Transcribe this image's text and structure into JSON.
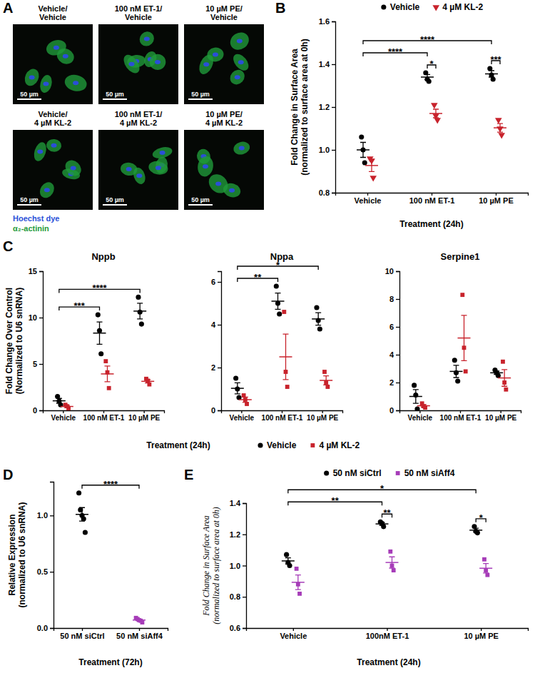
{
  "micrographs": {
    "panel": "A",
    "images": [
      {
        "title": [
          "Vehicle/",
          "Vehicle"
        ],
        "scale_bar": "50 µm"
      },
      {
        "title": [
          "100 nM ET-1/",
          "Vehicle"
        ],
        "scale_bar": "50 µm"
      },
      {
        "title": [
          "10 µM PE/",
          "Vehicle"
        ],
        "scale_bar": "50 µm"
      },
      {
        "title": [
          "Vehicle/",
          "4 µM KL-2"
        ],
        "scale_bar": "50 µm"
      },
      {
        "title": [
          "100 nM ET-1/",
          "4 µM KL-2"
        ],
        "scale_bar": "50 µm"
      },
      {
        "title": [
          "10 µM PE/",
          "4 µM KL-2"
        ],
        "scale_bar": "50 µm"
      }
    ],
    "stains": [
      {
        "name": "Hoechst dye",
        "color": "#2a4fd8"
      },
      {
        "name": "α₂-actinin",
        "color": "#1f9a3a"
      }
    ]
  },
  "chart_data": [
    {
      "panel": "B",
      "type": "scatter",
      "categories": [
        "Vehicle",
        "100 nM ET-1",
        "10 µM PE"
      ],
      "x_label": "Treatment (24h)",
      "y_label": [
        "Fold Change in Surface Area",
        "(normalized to surface area at 0h)"
      ],
      "ylim": [
        0.8,
        1.6
      ],
      "yticks": [
        0.8,
        {
          "value": 1,
          "label": "1.0"
        },
        1.2,
        1.4,
        1.6
      ],
      "legend": "top",
      "series": [
        {
          "name": "Vehicle",
          "color": "#000000",
          "marker": "circle",
          "values": [
            [
              1.06,
              1.0,
              0.94
            ],
            [
              1.36,
              1.33,
              1.32
            ],
            [
              1.38,
              1.35,
              1.33
            ]
          ],
          "mean": [
            1.0,
            1.34,
            1.355
          ],
          "error": [
            0.035,
            0.012,
            0.015
          ]
        },
        {
          "name": "4 µM KL-2",
          "color": "#c8232c",
          "marker": "triangle-down",
          "values": [
            [
              0.96,
              0.95,
              0.87
            ],
            [
              1.21,
              1.16,
              1.14
            ],
            [
              1.14,
              1.1,
              1.07
            ]
          ],
          "mean": [
            0.927,
            1.17,
            1.103
          ],
          "error": [
            0.028,
            0.02,
            0.02
          ]
        }
      ],
      "annotations": [
        {
          "text": "*",
          "from": [
            1,
            0
          ],
          "to": [
            1,
            1
          ]
        },
        {
          "text": "***",
          "from": [
            2,
            0
          ],
          "to": [
            2,
            1
          ]
        },
        {
          "text": "****",
          "from": [
            0,
            0
          ],
          "to": [
            1,
            0
          ]
        },
        {
          "text": "****",
          "from": [
            0,
            0
          ],
          "to": [
            2,
            0
          ]
        }
      ]
    },
    {
      "panel": "C",
      "type": "scatter",
      "title": "Nppb",
      "categories": [
        "Vehicle",
        "100 nM ET-1",
        "10 µM PE"
      ],
      "x_label": "Treatment (24h)",
      "y_label": [
        "Fold Change Over Control",
        "(Normalized to U6 snRNA)"
      ],
      "ylim": [
        0,
        15
      ],
      "yticks": [
        0,
        5,
        10,
        15
      ],
      "legend": "bottom",
      "series": [
        {
          "name": "Vehicle",
          "color": "#000000",
          "marker": "circle",
          "values": [
            [
              1.5,
              1.0,
              0.6
            ],
            [
              10.3,
              8.6,
              6.1
            ],
            [
              12.2,
              10.6,
              9.3
            ]
          ],
          "mean": [
            1.03,
            8.33,
            10.7
          ],
          "error": [
            0.26,
            1.2,
            0.85
          ]
        },
        {
          "name": "4 µM KL-2",
          "color": "#c8232c",
          "marker": "square",
          "values": [
            [
              0.6,
              0.45,
              0.2
            ],
            [
              5.3,
              4.1,
              2.4
            ],
            [
              3.4,
              3.2,
              2.8
            ]
          ],
          "mean": [
            0.42,
            3.93,
            3.13
          ],
          "error": [
            0.12,
            0.85,
            0.18
          ]
        }
      ],
      "annotations": [
        {
          "text": "***",
          "from": [
            0,
            0
          ],
          "to": [
            1,
            0
          ]
        },
        {
          "text": "****",
          "from": [
            0,
            0
          ],
          "to": [
            2,
            0
          ]
        }
      ]
    },
    {
      "type": "scatter",
      "title": "Nppa",
      "categories": [
        "Vehicle",
        "100 nM ET-1",
        "10 µM PE"
      ],
      "ylim": [
        0,
        6.5
      ],
      "yticks": [
        0,
        2,
        4,
        6
      ],
      "series": [
        {
          "color": "#000000",
          "marker": "circle",
          "values": [
            [
              1.5,
              1.0,
              0.6
            ],
            [
              5.8,
              5.0,
              4.5
            ],
            [
              4.8,
              4.2,
              3.8
            ]
          ],
          "mean": [
            1.03,
            5.1,
            4.27
          ],
          "error": [
            0.26,
            0.38,
            0.29
          ]
        },
        {
          "color": "#c8232c",
          "marker": "square",
          "values": [
            [
              0.7,
              0.5,
              0.3
            ],
            [
              4.6,
              1.8,
              1.1
            ],
            [
              1.8,
              1.3,
              1.1
            ]
          ],
          "mean": [
            0.5,
            2.5,
            1.4
          ],
          "error": [
            0.12,
            1.06,
            0.21
          ]
        }
      ],
      "annotations": [
        {
          "text": "**",
          "from": [
            0,
            0
          ],
          "to": [
            1,
            0
          ]
        },
        {
          "text": "*",
          "from": [
            0,
            0
          ],
          "to": [
            2,
            0
          ]
        }
      ]
    },
    {
      "type": "scatter",
      "title": "Serpine1",
      "categories": [
        "Vehicle",
        "100 nM ET-1",
        "10 µM PE"
      ],
      "ylim": [
        0,
        10
      ],
      "yticks": [
        0,
        2,
        4,
        6,
        8,
        10
      ],
      "series": [
        {
          "color": "#000000",
          "marker": "circle",
          "values": [
            [
              1.8,
              1.1,
              0.1
            ],
            [
              3.6,
              2.7,
              2.1
            ],
            [
              2.9,
              2.7,
              2.5
            ]
          ],
          "mean": [
            1.0,
            2.8,
            2.7
          ],
          "error": [
            0.49,
            0.44,
            0.12
          ]
        },
        {
          "color": "#c8232c",
          "marker": "square",
          "values": [
            [
              0.5,
              0.3,
              0.2
            ],
            [
              8.3,
              4.5,
              2.8
            ],
            [
              3.5,
              2.0,
              1.5
            ]
          ],
          "mean": [
            0.33,
            5.2,
            2.33
          ],
          "error": [
            0.09,
            1.63,
            0.6
          ]
        }
      ]
    },
    {
      "panel": "D",
      "type": "scatter",
      "categories": [
        "50 nM siCtrl",
        "50 nM siAff4"
      ],
      "x_label": "Treatment (72h)",
      "y_label": [
        "Relative Expression",
        "(normalized to U6 snRNA)"
      ],
      "ylim": [
        0,
        1.3
      ],
      "yticks": [
        {
          "value": 0,
          "label": "0.0"
        },
        0.5,
        {
          "value": 1,
          "label": "1.0"
        }
      ],
      "series": [
        {
          "color": "#000000",
          "marker": "circle",
          "values": [
            [
              1.2,
              1.05,
              1.0,
              0.97,
              0.85
            ],
            null
          ],
          "mean": [
            1.01,
            null
          ],
          "error": [
            0.06,
            null
          ]
        },
        {
          "color": "#a63cb8",
          "marker": "square",
          "values": [
            null,
            [
              0.09,
              0.08,
              0.07,
              0.065,
              0.05
            ]
          ],
          "mean": [
            null,
            0.071
          ],
          "error": [
            null,
            0.007
          ]
        }
      ],
      "annotations": [
        {
          "text": "****",
          "from": [
            0,
            0
          ],
          "to": [
            1,
            1
          ]
        }
      ]
    },
    {
      "panel": "E",
      "type": "scatter",
      "categories": [
        "Vehicle",
        "100nM ET-1",
        "10 µM PE"
      ],
      "x_label": "Treatment (24h)",
      "y_label": [
        "Fold Change in Surface Area",
        "(normalized to surface area at 0h)"
      ],
      "ylim": [
        0.6,
        1.4
      ],
      "yticks": [
        0.6,
        0.8,
        {
          "value": 1,
          "label": "1.0"
        },
        1.2,
        1.4
      ],
      "legend": "top",
      "series": [
        {
          "name": "50 nM siCtrl",
          "color": "#000000",
          "marker": "circle",
          "values": [
            [
              1.07,
              1.02,
              1.0
            ],
            [
              1.28,
              1.27,
              1.25
            ],
            [
              1.25,
              1.22,
              1.21
            ]
          ],
          "mean": [
            1.03,
            1.267,
            1.227
          ],
          "error": [
            0.02,
            0.009,
            0.012
          ]
        },
        {
          "name": "50 nM siAff4",
          "color": "#a63cb8",
          "marker": "square",
          "values": [
            [
              0.98,
              0.88,
              0.82
            ],
            [
              1.09,
              1.0,
              0.97
            ],
            [
              1.04,
              0.97,
              0.94
            ]
          ],
          "mean": [
            0.893,
            1.02,
            0.983
          ],
          "error": [
            0.047,
            0.036,
            0.03
          ]
        }
      ],
      "annotations": [
        {
          "text": "**",
          "from": [
            1,
            0
          ],
          "to": [
            1,
            1
          ]
        },
        {
          "text": "*",
          "from": [
            2,
            0
          ],
          "to": [
            2,
            1
          ]
        },
        {
          "text": "**",
          "from": [
            0,
            0
          ],
          "to": [
            1,
            0
          ]
        },
        {
          "text": "*",
          "from": [
            0,
            0
          ],
          "to": [
            2,
            0
          ]
        }
      ]
    }
  ]
}
